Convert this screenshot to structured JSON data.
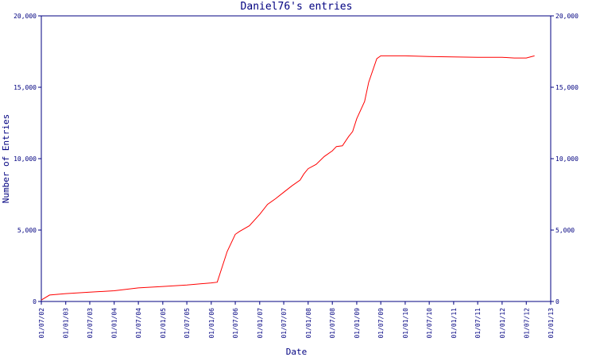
{
  "chart_data": {
    "type": "line",
    "title": "Daniel76's entries",
    "x_label": "Date",
    "y_label": "Number of Entries",
    "x": [
      "2002-07-01",
      "2002-09-01",
      "2003-01-01",
      "2003-07-01",
      "2004-01-01",
      "2004-07-01",
      "2005-01-01",
      "2005-07-01",
      "2006-01-01",
      "2006-02-15",
      "2006-05-01",
      "2006-07-01",
      "2006-08-01",
      "2006-10-15",
      "2007-01-01",
      "2007-03-01",
      "2007-05-01",
      "2007-07-01",
      "2007-09-01",
      "2007-11-01",
      "2007-12-01",
      "2008-01-01",
      "2008-03-01",
      "2008-05-01",
      "2008-07-01",
      "2008-08-01",
      "2008-09-15",
      "2008-11-01",
      "2008-12-01",
      "2009-01-01",
      "2009-03-01",
      "2009-04-01",
      "2009-06-01",
      "2009-07-01",
      "2010-01-01",
      "2010-07-01",
      "2011-07-01",
      "2012-01-01",
      "2012-04-01",
      "2012-07-01",
      "2012-09-01"
    ],
    "values": [
      100,
      450,
      550,
      650,
      750,
      950,
      1050,
      1150,
      1300,
      1350,
      3500,
      4700,
      4900,
      5300,
      6100,
      6800,
      7200,
      7650,
      8100,
      8500,
      8950,
      9300,
      9600,
      10150,
      10550,
      10850,
      10900,
      11550,
      11900,
      12800,
      14000,
      15350,
      17000,
      17200,
      17200,
      17150,
      17100,
      17100,
      17050,
      17050,
      17200
    ],
    "color": "#ff0000",
    "xlim": [
      "2002-07-01",
      "2013-01-01"
    ],
    "xticks": [
      {
        "value": "2002-07-01",
        "label": "01/07/02"
      },
      {
        "value": "2003-01-01",
        "label": "01/01/03"
      },
      {
        "value": "2003-07-01",
        "label": "01/07/03"
      },
      {
        "value": "2004-01-01",
        "label": "01/01/04"
      },
      {
        "value": "2004-07-01",
        "label": "01/07/04"
      },
      {
        "value": "2005-01-01",
        "label": "01/01/05"
      },
      {
        "value": "2005-07-01",
        "label": "01/07/05"
      },
      {
        "value": "2006-01-01",
        "label": "01/01/06"
      },
      {
        "value": "2006-07-01",
        "label": "01/07/06"
      },
      {
        "value": "2007-01-01",
        "label": "01/01/07"
      },
      {
        "value": "2007-07-01",
        "label": "01/07/07"
      },
      {
        "value": "2008-01-01",
        "label": "01/01/08"
      },
      {
        "value": "2008-07-01",
        "label": "01/07/08"
      },
      {
        "value": "2009-01-01",
        "label": "01/01/09"
      },
      {
        "value": "2009-07-01",
        "label": "01/07/09"
      },
      {
        "value": "2010-01-01",
        "label": "01/01/10"
      },
      {
        "value": "2010-07-01",
        "label": "01/07/10"
      },
      {
        "value": "2011-01-01",
        "label": "01/01/11"
      },
      {
        "value": "2011-07-01",
        "label": "01/07/11"
      },
      {
        "value": "2012-01-01",
        "label": "01/01/12"
      },
      {
        "value": "2012-07-01",
        "label": "01/07/12"
      },
      {
        "value": "2013-01-01",
        "label": "01/01/13"
      }
    ],
    "ylim": [
      0,
      20000
    ],
    "yticks": [
      0,
      {
        "value": 5000,
        "label": "5,000"
      },
      {
        "value": 10000,
        "label": "10,000"
      },
      {
        "value": 15000,
        "label": "15,000"
      },
      {
        "value": 20000,
        "label": "20,000"
      }
    ],
    "y2lim": [
      0,
      20000
    ],
    "y2ticks": [
      0,
      {
        "value": 5000,
        "label": "5,000"
      },
      {
        "value": 10000,
        "label": "10,000"
      },
      {
        "value": 15000,
        "label": "15,000"
      },
      {
        "value": 20000,
        "label": "20,000"
      }
    ]
  }
}
